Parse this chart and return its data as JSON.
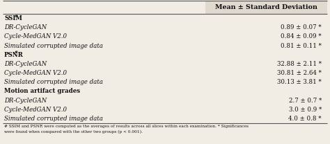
{
  "header_col": "Mean ± Standard Deviation",
  "sections": [
    {
      "title": "SSIM",
      "title_superscript": " #",
      "rows": [
        {
          "label": "DR-CycleGAN",
          "value": "0.89 ± 0.07 *"
        },
        {
          "label": "Cycle-MedGAN V2.0",
          "value": "0.84 ± 0.09 *"
        },
        {
          "label": "Simulated corrupted image data",
          "value": "0.81 ± 0.11 *"
        }
      ]
    },
    {
      "title": "PSNR",
      "title_superscript": " #",
      "rows": [
        {
          "label": "DR-CycleGAN",
          "value": "32.88 ± 2.11 *"
        },
        {
          "label": "Cycle-MedGAN V2.0",
          "value": "30.81 ± 2.64 *"
        },
        {
          "label": "Simulated corrupted image data",
          "value": "30.13 ± 3.81 *"
        }
      ]
    },
    {
      "title": "Motion artifact grades",
      "title_superscript": "",
      "rows": [
        {
          "label": "DR-CycleGAN",
          "value": "2.7 ± 0.7 *"
        },
        {
          "label": "Cycle-MedGAN V2.0",
          "value": "3.0 ± 0.9 *"
        },
        {
          "label": "Simulated corrupted image data",
          "value": "4.0 ± 0.8 *"
        }
      ]
    }
  ],
  "footnote1": "# SSIM and PSNR were computed as the averages of results across all slices within each examination. * Significances",
  "footnote2": "were found when compared with the other two groups (p < 0.001).",
  "bg_color": "#f2ede4",
  "header_bg": "#e0d9ce",
  "line_color": "#555555",
  "text_color": "#111111"
}
